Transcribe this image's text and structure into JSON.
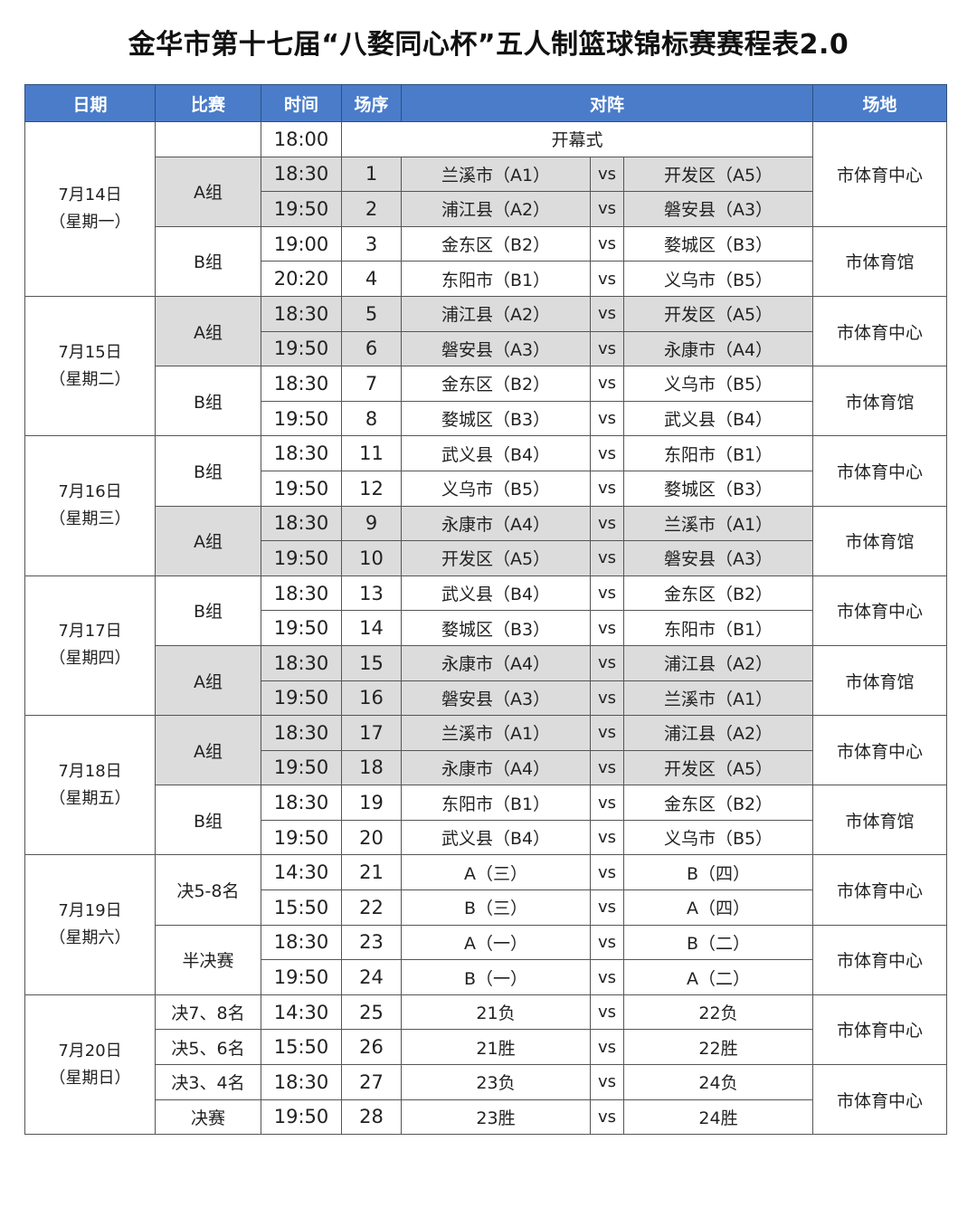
{
  "title": "金华市第十七届“八婺同心杯”五人制篮球锦标赛赛程表2.0",
  "headers": {
    "date": "日期",
    "match": "比赛",
    "time": "时间",
    "no": "场序",
    "matchup": "对阵",
    "venue": "场地"
  },
  "vs_label": "vs",
  "colors": {
    "header_bg": "#4a7cc9",
    "shade": "#dcdcdc"
  },
  "days": [
    {
      "date": "7月14日",
      "weekday": "（星期一）",
      "groups": [
        {
          "label": "",
          "shaded": false,
          "matches": [
            {
              "time": "18:00",
              "ceremony": "开幕式"
            }
          ]
        },
        {
          "label": "A组",
          "shaded": true,
          "matches": [
            {
              "time": "18:30",
              "no": "1",
              "home": "兰溪市（A1）",
              "away": "开发区（A5）"
            },
            {
              "time": "19:50",
              "no": "2",
              "home": "浦江县（A2）",
              "away": "磐安县（A3）"
            }
          ]
        },
        {
          "label": "B组",
          "shaded": false,
          "matches": [
            {
              "time": "19:00",
              "no": "3",
              "home": "金东区（B2）",
              "away": "婺城区（B3）"
            },
            {
              "time": "20:20",
              "no": "4",
              "home": "东阳市（B1）",
              "away": "义乌市（B5）"
            }
          ]
        }
      ],
      "venues": [
        {
          "name": "市体育中心",
          "rows": 3
        },
        {
          "name": "市体育馆",
          "rows": 2
        }
      ]
    },
    {
      "date": "7月15日",
      "weekday": "（星期二）",
      "groups": [
        {
          "label": "A组",
          "shaded": true,
          "matches": [
            {
              "time": "18:30",
              "no": "5",
              "home": "浦江县（A2）",
              "away": "开发区（A5）"
            },
            {
              "time": "19:50",
              "no": "6",
              "home": "磐安县（A3）",
              "away": "永康市（A4）"
            }
          ]
        },
        {
          "label": "B组",
          "shaded": false,
          "matches": [
            {
              "time": "18:30",
              "no": "7",
              "home": "金东区（B2）",
              "away": "义乌市（B5）"
            },
            {
              "time": "19:50",
              "no": "8",
              "home": "婺城区（B3）",
              "away": "武义县（B4）"
            }
          ]
        }
      ],
      "venues": [
        {
          "name": "市体育中心",
          "rows": 2
        },
        {
          "name": "市体育馆",
          "rows": 2
        }
      ]
    },
    {
      "date": "7月16日",
      "weekday": "（星期三）",
      "groups": [
        {
          "label": "B组",
          "shaded": false,
          "matches": [
            {
              "time": "18:30",
              "no": "11",
              "home": "武义县（B4）",
              "away": "东阳市（B1）"
            },
            {
              "time": "19:50",
              "no": "12",
              "home": "义乌市（B5）",
              "away": "婺城区（B3）"
            }
          ]
        },
        {
          "label": "A组",
          "shaded": true,
          "matches": [
            {
              "time": "18:30",
              "no": "9",
              "home": "永康市（A4）",
              "away": "兰溪市（A1）"
            },
            {
              "time": "19:50",
              "no": "10",
              "home": "开发区（A5）",
              "away": "磐安县（A3）"
            }
          ]
        }
      ],
      "venues": [
        {
          "name": "市体育中心",
          "rows": 2
        },
        {
          "name": "市体育馆",
          "rows": 2
        }
      ]
    },
    {
      "date": "7月17日",
      "weekday": "（星期四）",
      "groups": [
        {
          "label": "B组",
          "shaded": false,
          "matches": [
            {
              "time": "18:30",
              "no": "13",
              "home": "武义县（B4）",
              "away": "金东区（B2）"
            },
            {
              "time": "19:50",
              "no": "14",
              "home": "婺城区（B3）",
              "away": "东阳市（B1）"
            }
          ]
        },
        {
          "label": "A组",
          "shaded": true,
          "matches": [
            {
              "time": "18:30",
              "no": "15",
              "home": "永康市（A4）",
              "away": "浦江县（A2）"
            },
            {
              "time": "19:50",
              "no": "16",
              "home": "磐安县（A3）",
              "away": "兰溪市（A1）"
            }
          ]
        }
      ],
      "venues": [
        {
          "name": "市体育中心",
          "rows": 2
        },
        {
          "name": "市体育馆",
          "rows": 2
        }
      ]
    },
    {
      "date": "7月18日",
      "weekday": "（星期五）",
      "groups": [
        {
          "label": "A组",
          "shaded": true,
          "matches": [
            {
              "time": "18:30",
              "no": "17",
              "home": "兰溪市（A1）",
              "away": "浦江县（A2）"
            },
            {
              "time": "19:50",
              "no": "18",
              "home": "永康市（A4）",
              "away": "开发区（A5）"
            }
          ]
        },
        {
          "label": "B组",
          "shaded": false,
          "matches": [
            {
              "time": "18:30",
              "no": "19",
              "home": "东阳市（B1）",
              "away": "金东区（B2）"
            },
            {
              "time": "19:50",
              "no": "20",
              "home": "武义县（B4）",
              "away": "义乌市（B5）"
            }
          ]
        }
      ],
      "venues": [
        {
          "name": "市体育中心",
          "rows": 2
        },
        {
          "name": "市体育馆",
          "rows": 2
        }
      ]
    },
    {
      "date": "7月19日",
      "weekday": "（星期六）",
      "groups": [
        {
          "label": "决5-8名",
          "shaded": false,
          "matches": [
            {
              "time": "14:30",
              "no": "21",
              "home": "A（三）",
              "away": "B（四）"
            },
            {
              "time": "15:50",
              "no": "22",
              "home": "B（三）",
              "away": "A（四）"
            }
          ]
        },
        {
          "label": "半决赛",
          "shaded": false,
          "matches": [
            {
              "time": "18:30",
              "no": "23",
              "home": "A（一）",
              "away": "B（二）"
            },
            {
              "time": "19:50",
              "no": "24",
              "home": "B（一）",
              "away": "A（二）"
            }
          ]
        }
      ],
      "venues": [
        {
          "name": "市体育中心",
          "rows": 2
        },
        {
          "name": "市体育中心",
          "rows": 2
        }
      ]
    },
    {
      "date": "7月20日",
      "weekday": "（星期日）",
      "groups": [
        {
          "label": "决7、8名",
          "shaded": false,
          "matches": [
            {
              "time": "14:30",
              "no": "25",
              "home": "21负",
              "away": "22负"
            }
          ]
        },
        {
          "label": "决5、6名",
          "shaded": false,
          "matches": [
            {
              "time": "15:50",
              "no": "26",
              "home": "21胜",
              "away": "22胜"
            }
          ]
        },
        {
          "label": "决3、4名",
          "shaded": false,
          "matches": [
            {
              "time": "18:30",
              "no": "27",
              "home": "23负",
              "away": "24负"
            }
          ]
        },
        {
          "label": "决赛",
          "shaded": false,
          "matches": [
            {
              "time": "19:50",
              "no": "28",
              "home": "23胜",
              "away": "24胜"
            }
          ]
        }
      ],
      "venues": [
        {
          "name": "市体育中心",
          "rows": 2
        },
        {
          "name": "市体育中心",
          "rows": 2
        }
      ]
    }
  ]
}
